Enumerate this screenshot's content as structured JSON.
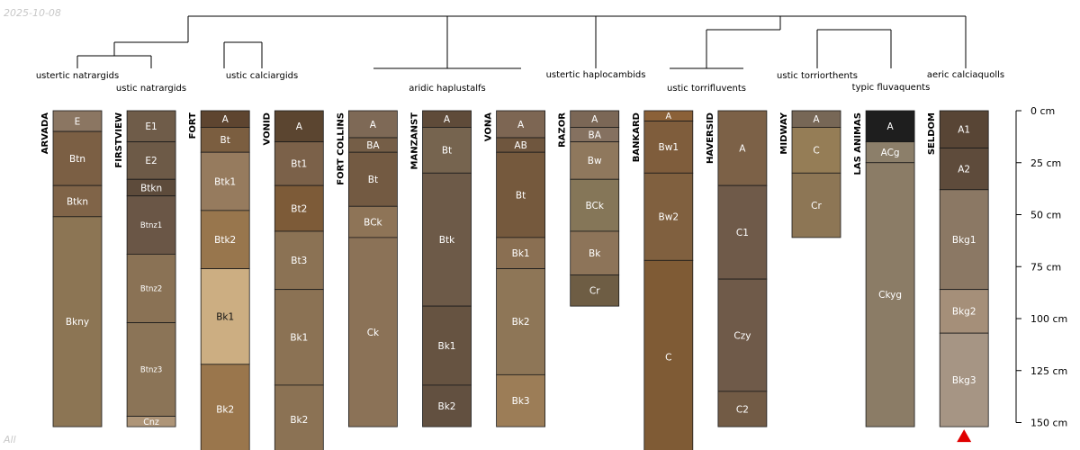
{
  "stamp": {
    "date": "2025-10-08",
    "corner": "All"
  },
  "chart_data": {
    "type": "soil-profile-sketch",
    "depth_unit": "cm",
    "depth_axis": {
      "ticks": [
        0,
        25,
        50,
        75,
        100,
        125,
        150
      ],
      "tick_labels": [
        "0 cm",
        "25 cm",
        "50 cm",
        "75 cm",
        "100 cm",
        "125 cm",
        "150 cm"
      ]
    },
    "dendrogram": {
      "groups": [
        {
          "label": "ustertic natrargids",
          "members": [
            "ARVADA"
          ]
        },
        {
          "label": "ustic natrargids",
          "members": [
            "FIRSTVIEW"
          ]
        },
        {
          "label": "ustic calciargids",
          "members": [
            "FORT",
            "VONID"
          ]
        },
        {
          "label": "aridic haplustalfs",
          "members": [
            "FORT COLLINS",
            "MANZANST",
            "VONA"
          ]
        },
        {
          "label": "ustertic haplocambids",
          "members": [
            "RAZOR"
          ]
        },
        {
          "label": "ustic torrifluvents",
          "members": [
            "BANKARD",
            "HAVERSID"
          ]
        },
        {
          "label": "ustic torriorthents",
          "members": [
            "MIDWAY"
          ]
        },
        {
          "label": "typic fluvaquents",
          "members": [
            "LAS ANIMAS"
          ]
        },
        {
          "label": "aeric calciaquolls",
          "members": [
            "SELDOM"
          ]
        }
      ]
    },
    "profiles": [
      {
        "name": "ARVADA",
        "horizons": [
          {
            "name": "E",
            "top": 0,
            "bottom": 10,
            "color": "#8b7662"
          },
          {
            "name": "Btn",
            "top": 10,
            "bottom": 36,
            "color": "#7b5f44"
          },
          {
            "name": "Btkn",
            "top": 36,
            "bottom": 51,
            "color": "#806448"
          },
          {
            "name": "Bkny",
            "top": 51,
            "bottom": 152,
            "color": "#8c7554"
          }
        ]
      },
      {
        "name": "FIRSTVIEW",
        "horizons": [
          {
            "name": "E1",
            "top": 0,
            "bottom": 15,
            "color": "#6f5c49"
          },
          {
            "name": "E2",
            "top": 15,
            "bottom": 33,
            "color": "#6d5a47"
          },
          {
            "name": "Btkn",
            "top": 33,
            "bottom": 41,
            "color": "#5d4b3b"
          },
          {
            "name": "Btnz1",
            "top": 41,
            "bottom": 69,
            "color": "#6a5646"
          },
          {
            "name": "Btnz2",
            "top": 69,
            "bottom": 102,
            "color": "#8a7255"
          },
          {
            "name": "Btnz3",
            "top": 102,
            "bottom": 147,
            "color": "#8b7457"
          },
          {
            "name": "Cnz",
            "top": 147,
            "bottom": 152,
            "color": "#ae9578"
          }
        ]
      },
      {
        "name": "FORT",
        "horizons": [
          {
            "name": "A",
            "top": 0,
            "bottom": 8,
            "color": "#5e4530"
          },
          {
            "name": "Bt",
            "top": 8,
            "bottom": 20,
            "color": "#7b5e40"
          },
          {
            "name": "Btk1",
            "top": 20,
            "bottom": 48,
            "color": "#967b5e"
          },
          {
            "name": "Btk2",
            "top": 48,
            "bottom": 76,
            "color": "#98764d"
          },
          {
            "name": "Bk1",
            "top": 76,
            "bottom": 122,
            "color": "#ccae82"
          },
          {
            "name": "Bk2",
            "top": 122,
            "bottom": 165,
            "color": "#9a764c"
          }
        ]
      },
      {
        "name": "VONID",
        "horizons": [
          {
            "name": "A",
            "top": 0,
            "bottom": 15,
            "color": "#5b4530"
          },
          {
            "name": "Bt1",
            "top": 15,
            "bottom": 36,
            "color": "#7b6149"
          },
          {
            "name": "Bt2",
            "top": 36,
            "bottom": 58,
            "color": "#7d5b38"
          },
          {
            "name": "Bt3",
            "top": 58,
            "bottom": 86,
            "color": "#8b7254"
          },
          {
            "name": "Bk1",
            "top": 86,
            "bottom": 132,
            "color": "#8b7254"
          },
          {
            "name": "Bk2",
            "top": 132,
            "bottom": 165,
            "color": "#8b7254"
          }
        ]
      },
      {
        "name": "FORT COLLINS",
        "horizons": [
          {
            "name": "A",
            "top": 0,
            "bottom": 13,
            "color": "#7e6956"
          },
          {
            "name": "BA",
            "top": 13,
            "bottom": 20,
            "color": "#755e47"
          },
          {
            "name": "Bt",
            "top": 20,
            "bottom": 46,
            "color": "#735a42"
          },
          {
            "name": "BCk",
            "top": 46,
            "bottom": 61,
            "color": "#8e7457"
          },
          {
            "name": "Ck",
            "top": 61,
            "bottom": 152,
            "color": "#8b7257"
          }
        ]
      },
      {
        "name": "MANZANST",
        "horizons": [
          {
            "name": "A",
            "top": 0,
            "bottom": 8,
            "color": "#5f4b39"
          },
          {
            "name": "Bt",
            "top": 8,
            "bottom": 30,
            "color": "#76644f"
          },
          {
            "name": "Btk",
            "top": 30,
            "bottom": 94,
            "color": "#6d5a48"
          },
          {
            "name": "Bk1",
            "top": 94,
            "bottom": 132,
            "color": "#665341"
          },
          {
            "name": "Bk2",
            "top": 132,
            "bottom": 152,
            "color": "#625040"
          }
        ]
      },
      {
        "name": "VONA",
        "horizons": [
          {
            "name": "A",
            "top": 0,
            "bottom": 13,
            "color": "#7d6653"
          },
          {
            "name": "AB",
            "top": 13,
            "bottom": 20,
            "color": "#6f563e"
          },
          {
            "name": "Bt",
            "top": 20,
            "bottom": 61,
            "color": "#75593d"
          },
          {
            "name": "Bk1",
            "top": 61,
            "bottom": 76,
            "color": "#8a6f52"
          },
          {
            "name": "Bk2",
            "top": 76,
            "bottom": 127,
            "color": "#8e7657"
          },
          {
            "name": "Bk3",
            "top": 127,
            "bottom": 152,
            "color": "#9c7d57"
          }
        ]
      },
      {
        "name": "RAZOR",
        "horizons": [
          {
            "name": "A",
            "top": 0,
            "bottom": 8,
            "color": "#7b6756"
          },
          {
            "name": "BA",
            "top": 8,
            "bottom": 15,
            "color": "#857160"
          },
          {
            "name": "Bw",
            "top": 15,
            "bottom": 33,
            "color": "#8f785d"
          },
          {
            "name": "BCk",
            "top": 33,
            "bottom": 58,
            "color": "#857658"
          },
          {
            "name": "Bk",
            "top": 58,
            "bottom": 79,
            "color": "#8d7459"
          },
          {
            "name": "Cr",
            "top": 79,
            "bottom": 94,
            "color": "#6e5d44"
          }
        ]
      },
      {
        "name": "BANKARD",
        "horizons": [
          {
            "name": "A",
            "top": 0,
            "bottom": 5,
            "color": "#8b6138"
          },
          {
            "name": "Bw1",
            "top": 5,
            "bottom": 30,
            "color": "#7f5d3c"
          },
          {
            "name": "Bw2",
            "top": 30,
            "bottom": 72,
            "color": "#80603f"
          },
          {
            "name": "C",
            "top": 72,
            "bottom": 165,
            "color": "#7f5b35"
          }
        ]
      },
      {
        "name": "HAVERSID",
        "horizons": [
          {
            "name": "A",
            "top": 0,
            "bottom": 36,
            "color": "#7c6147"
          },
          {
            "name": "C1",
            "top": 36,
            "bottom": 81,
            "color": "#6f5a49"
          },
          {
            "name": "Czy",
            "top": 81,
            "bottom": 135,
            "color": "#6f5a49"
          },
          {
            "name": "C2",
            "top": 135,
            "bottom": 152,
            "color": "#725b45"
          }
        ]
      },
      {
        "name": "MIDWAY",
        "horizons": [
          {
            "name": "A",
            "top": 0,
            "bottom": 8,
            "color": "#776756"
          },
          {
            "name": "C",
            "top": 8,
            "bottom": 30,
            "color": "#957d56"
          },
          {
            "name": "Cr",
            "top": 30,
            "bottom": 61,
            "color": "#8d7655"
          }
        ]
      },
      {
        "name": "LAS ANIMAS",
        "horizons": [
          {
            "name": "A",
            "top": 0,
            "bottom": 15,
            "color": "#1e1e1e"
          },
          {
            "name": "ACg",
            "top": 15,
            "bottom": 25,
            "color": "#8c7f6a"
          },
          {
            "name": "Ckyg",
            "top": 25,
            "bottom": 152,
            "color": "#8b7c66"
          }
        ]
      },
      {
        "name": "SELDOM",
        "horizons": [
          {
            "name": "A1",
            "top": 0,
            "bottom": 18,
            "color": "#584535"
          },
          {
            "name": "A2",
            "top": 18,
            "bottom": 38,
            "color": "#5e4b3b"
          },
          {
            "name": "Bkg1",
            "top": 38,
            "bottom": 86,
            "color": "#8b7864"
          },
          {
            "name": "Bkg2",
            "top": 86,
            "bottom": 107,
            "color": "#a58f79"
          },
          {
            "name": "Bkg3",
            "top": 107,
            "bottom": 152,
            "color": "#a69584"
          }
        ]
      }
    ],
    "flags": [
      {
        "profile": "SELDOM",
        "marker": "red-triangle",
        "color": "#e00000"
      }
    ]
  }
}
